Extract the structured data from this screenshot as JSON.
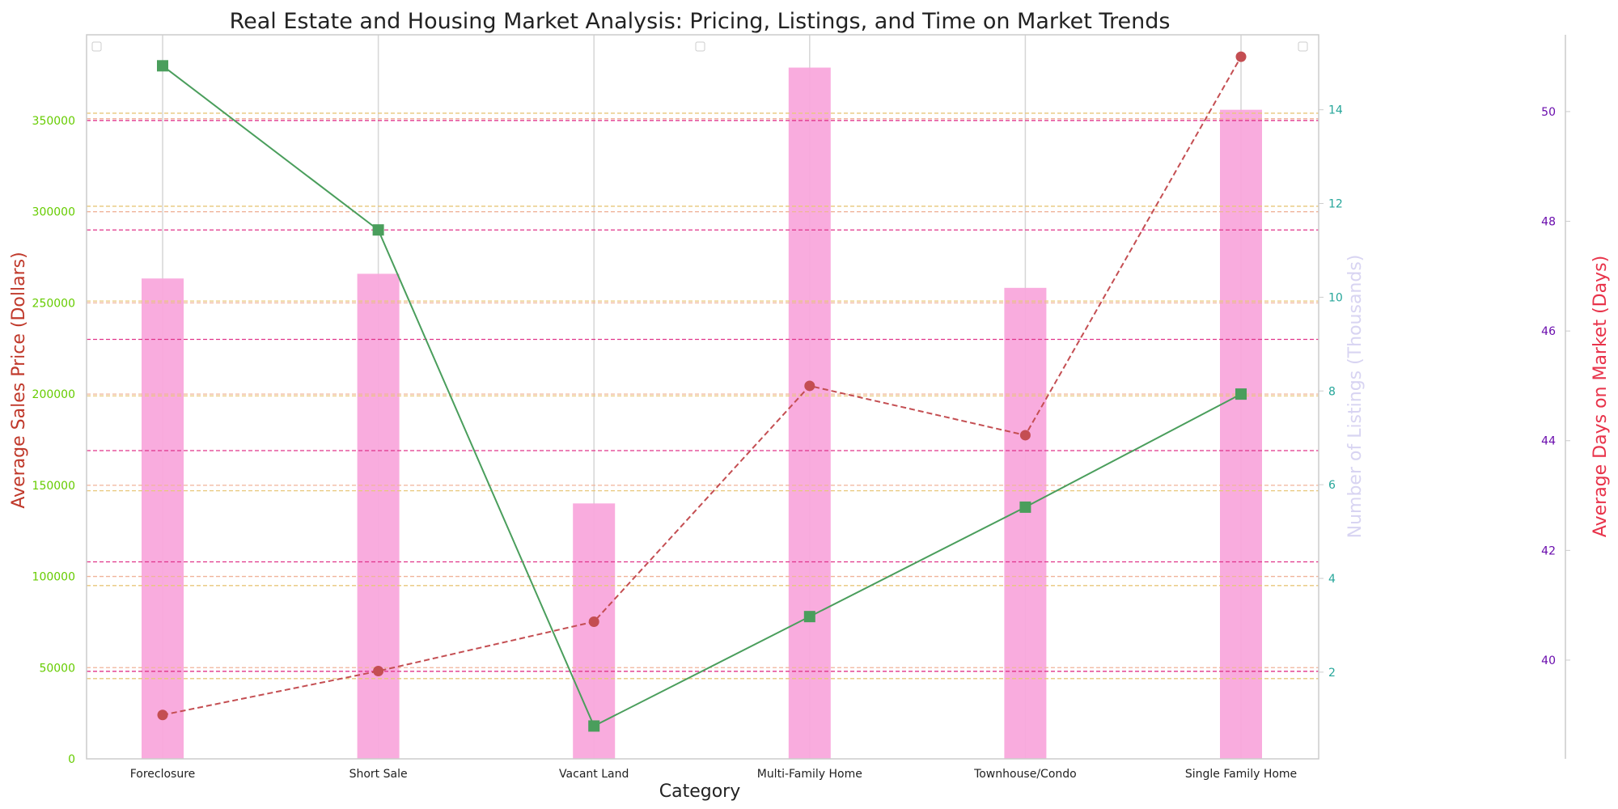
{
  "chart_data": {
    "type": "bar",
    "title": "Real Estate and Housing Market Analysis: Pricing, Listings, and Time on Market Trends",
    "xlabel": "Category",
    "categories": [
      "Foreclosure",
      "Short Sale",
      "Vacant Land",
      "Multi-Family Home",
      "Townhouse/Condo",
      "Single Family Home"
    ],
    "axes": {
      "price": {
        "label": "Average Sales Price (Dollars)",
        "label_color": "#c0392b",
        "tick_color": "#66cc00",
        "ylim": [
          0,
          397000
        ],
        "ticks": [
          0,
          50000,
          100000,
          150000,
          200000,
          250000,
          300000,
          350000
        ]
      },
      "listings": {
        "label": "Number of Listings (Thousands)",
        "label_color": "#d8d4f2",
        "tick_color": "#26a69a",
        "ylim": [
          0.15,
          15.6
        ],
        "ticks": [
          2,
          4,
          6,
          8,
          10,
          12,
          14
        ]
      },
      "days": {
        "label": "Average Days on Market (Days)",
        "label_color": "#e8334a",
        "tick_color": "#6a0dad",
        "ylim": [
          38.2,
          51.4
        ],
        "ticks": [
          40,
          42,
          44,
          46,
          48,
          50
        ]
      }
    },
    "series": [
      {
        "kind": "bar",
        "axis": "listings",
        "color": "#f9a8dc",
        "values": [
          10.4,
          10.5,
          5.6,
          14.9,
          10.2,
          14.0
        ]
      },
      {
        "kind": "line",
        "axis": "price",
        "color": "#4a9e5c",
        "line_style": "solid",
        "marker": "square",
        "values": [
          380000,
          290000,
          18000,
          78000,
          138000,
          200000
        ]
      },
      {
        "kind": "line",
        "axis": "days",
        "color": "#c44e52",
        "line_style": "dashed",
        "marker": "circle",
        "values": [
          39,
          39.8,
          40.7,
          45,
          44.1,
          51
        ]
      }
    ],
    "reference_lines": [
      {
        "axis": "price",
        "value": 48000,
        "color": "#e0348a",
        "style": "dashed"
      },
      {
        "axis": "price",
        "value": 108000,
        "color": "#e0348a",
        "style": "dashed"
      },
      {
        "axis": "price",
        "value": 169000,
        "color": "#e0348a",
        "style": "dashed"
      },
      {
        "axis": "price",
        "value": 230000,
        "color": "#e0348a",
        "style": "dashed"
      },
      {
        "axis": "price",
        "value": 290000,
        "color": "#e0348a",
        "style": "dashed"
      },
      {
        "axis": "price",
        "value": 350000,
        "color": "#e0348a",
        "style": "dashed"
      },
      {
        "axis": "price",
        "value": 44000,
        "color": "#e8c77a",
        "style": "dashed"
      },
      {
        "axis": "price",
        "value": 95000,
        "color": "#e8c77a",
        "style": "dashed"
      },
      {
        "axis": "price",
        "value": 147000,
        "color": "#e8c77a",
        "style": "dashed"
      },
      {
        "axis": "price",
        "value": 199000,
        "color": "#e8c77a",
        "style": "dashed"
      },
      {
        "axis": "price",
        "value": 251000,
        "color": "#e8c77a",
        "style": "dashed"
      },
      {
        "axis": "price",
        "value": 303000,
        "color": "#e8c77a",
        "style": "dashed"
      },
      {
        "axis": "price",
        "value": 354000,
        "color": "#e8c77a",
        "style": "dashed"
      },
      {
        "axis": "price",
        "value": 50000,
        "color": "#f0b49a",
        "style": "dashed"
      },
      {
        "axis": "price",
        "value": 100000,
        "color": "#f0b49a",
        "style": "dashed"
      },
      {
        "axis": "price",
        "value": 150000,
        "color": "#f0b49a",
        "style": "dashed"
      },
      {
        "axis": "price",
        "value": 200000,
        "color": "#f0b49a",
        "style": "dashed"
      },
      {
        "axis": "price",
        "value": 250000,
        "color": "#f0b49a",
        "style": "dashed"
      },
      {
        "axis": "price",
        "value": 300000,
        "color": "#f0b49a",
        "style": "dashed"
      },
      {
        "axis": "price",
        "value": 351000,
        "color": "#f0b49a",
        "style": "dashed"
      }
    ],
    "grid": "vertical",
    "legend": "empty boxes at top-left, top-center, top-right"
  }
}
